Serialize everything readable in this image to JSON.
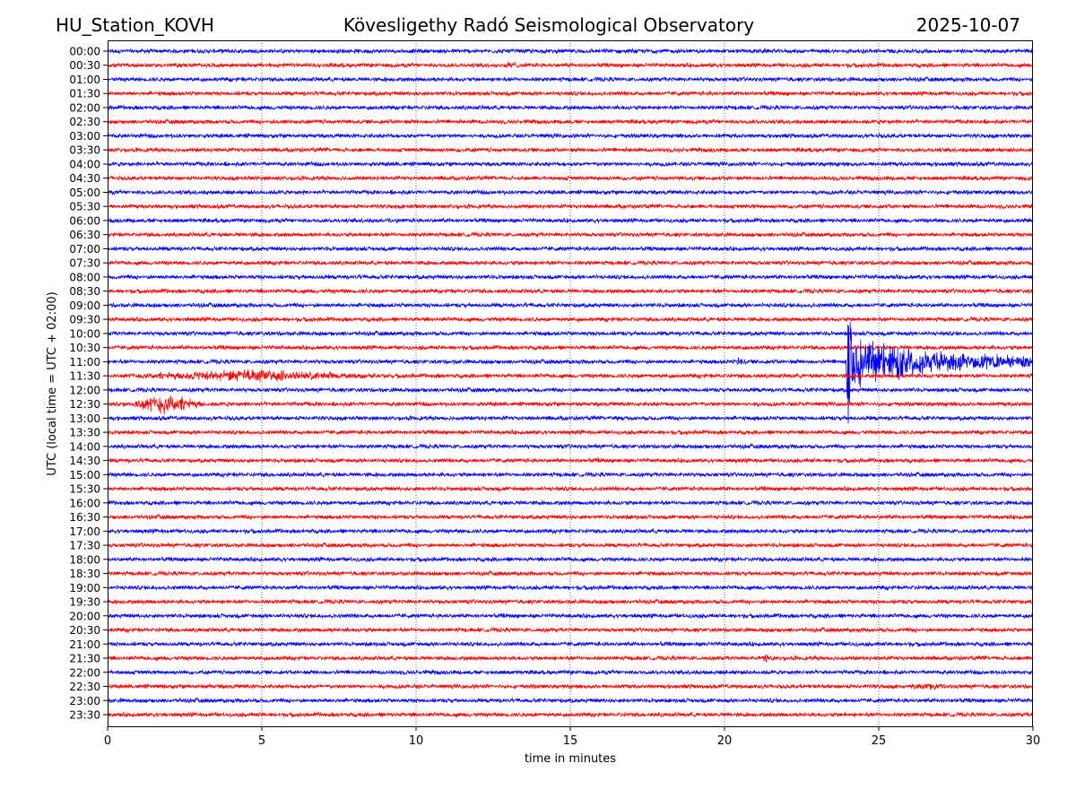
{
  "header": {
    "station": "HU_Station_KOVH",
    "title": "Kövesligethy Radó Seismological Observatory",
    "date": "2025-10-07"
  },
  "chart_data": {
    "type": "line",
    "subtype": "helicorder",
    "title": "Kövesligethy Radó Seismological Observatory",
    "xlabel": "time in minutes",
    "ylabel": "UTC (local time = UTC + 02:00)",
    "xlim": [
      0,
      30
    ],
    "xticks": [
      "0",
      "5",
      "10",
      "15",
      "20",
      "25",
      "30"
    ],
    "grid": "vertical dotted at x ticks",
    "colors": [
      "#0000ff",
      "#ff0000"
    ],
    "rows": [
      "00:00",
      "00:30",
      "01:00",
      "01:30",
      "02:00",
      "02:30",
      "03:00",
      "03:30",
      "04:00",
      "04:30",
      "05:00",
      "05:30",
      "06:00",
      "06:30",
      "07:00",
      "07:30",
      "08:00",
      "08:30",
      "09:00",
      "09:30",
      "10:00",
      "10:30",
      "11:00",
      "11:30",
      "12:00",
      "12:30",
      "13:00",
      "13:30",
      "14:00",
      "14:30",
      "15:00",
      "15:30",
      "16:00",
      "16:30",
      "17:00",
      "17:30",
      "18:00",
      "18:30",
      "19:00",
      "19:30",
      "20:00",
      "20:30",
      "21:00",
      "21:30",
      "22:00",
      "22:30",
      "23:00",
      "23:30"
    ],
    "baseline_noise_amplitude": 0.12,
    "events": [
      {
        "row": "00:30",
        "start_min": 12.5,
        "end_min": 13.6,
        "amplitude": 0.3
      },
      {
        "row": "02:30",
        "start_min": 5.4,
        "end_min": 6.3,
        "amplitude": 0.25
      },
      {
        "row": "06:00",
        "start_min": 8.7,
        "end_min": 9.6,
        "amplitude": 0.2
      },
      {
        "row": "11:00",
        "start_min": 20.4,
        "end_min": 20.65,
        "amplitude": 0.8
      },
      {
        "row": "11:00",
        "start_min": 23.95,
        "end_min": 24.1,
        "amplitude": 7.0
      },
      {
        "row": "11:00",
        "start_min": 24.1,
        "end_min": 30,
        "amplitude": 2.4,
        "decay": true
      },
      {
        "row": "11:30",
        "start_min": 0,
        "end_min": 9.2,
        "amplitude": 0.55
      },
      {
        "row": "12:30",
        "start_min": 0.5,
        "end_min": 3.2,
        "amplitude": 0.85
      },
      {
        "row": "13:00",
        "start_min": 16.3,
        "end_min": 16.8,
        "amplitude": 0.25
      },
      {
        "row": "21:30",
        "start_min": 21.0,
        "end_min": 21.7,
        "amplitude": 0.35
      },
      {
        "row": "22:30",
        "start_min": 25.8,
        "end_min": 27.2,
        "amplitude": 0.35
      }
    ]
  }
}
